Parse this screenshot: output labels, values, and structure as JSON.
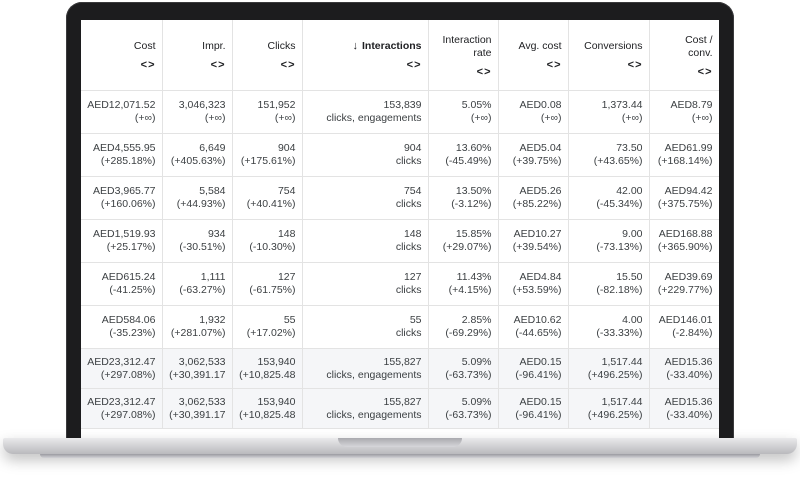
{
  "table": {
    "sort_glyph": "<>",
    "sort_arrow": "↓",
    "columns": [
      {
        "label": "Cost"
      },
      {
        "label": "Impr."
      },
      {
        "label": "Clicks"
      },
      {
        "label": "Interactions"
      },
      {
        "label_line1": "Interaction",
        "label_line2": "rate"
      },
      {
        "label": "Avg. cost"
      },
      {
        "label": "Conversions"
      },
      {
        "label_line1": "Cost /",
        "label_line2": "conv."
      }
    ],
    "rows": [
      [
        [
          "AED12,071.52",
          "(+∞)"
        ],
        [
          "3,046,323",
          "(+∞)"
        ],
        [
          "151,952",
          "(+∞)"
        ],
        [
          "153,839",
          "clicks, engagements"
        ],
        [
          "5.05%",
          "(+∞)"
        ],
        [
          "AED0.08",
          "(+∞)"
        ],
        [
          "1,373.44",
          "(+∞)"
        ],
        [
          "AED8.79",
          "(+∞)"
        ]
      ],
      [
        [
          "AED4,555.95",
          "(+285.18%)"
        ],
        [
          "6,649",
          "(+405.63%)"
        ],
        [
          "904",
          "(+175.61%)"
        ],
        [
          "904",
          "clicks"
        ],
        [
          "13.60%",
          "(-45.49%)"
        ],
        [
          "AED5.04",
          "(+39.75%)"
        ],
        [
          "73.50",
          "(+43.65%)"
        ],
        [
          "AED61.99",
          "(+168.14%)"
        ]
      ],
      [
        [
          "AED3,965.77",
          "(+160.06%)"
        ],
        [
          "5,584",
          "(+44.93%)"
        ],
        [
          "754",
          "(+40.41%)"
        ],
        [
          "754",
          "clicks"
        ],
        [
          "13.50%",
          "(-3.12%)"
        ],
        [
          "AED5.26",
          "(+85.22%)"
        ],
        [
          "42.00",
          "(-45.34%)"
        ],
        [
          "AED94.42",
          "(+375.75%)"
        ]
      ],
      [
        [
          "AED1,519.93",
          "(+25.17%)"
        ],
        [
          "934",
          "(-30.51%)"
        ],
        [
          "148",
          "(-10.30%)"
        ],
        [
          "148",
          "clicks"
        ],
        [
          "15.85%",
          "(+29.07%)"
        ],
        [
          "AED10.27",
          "(+39.54%)"
        ],
        [
          "9.00",
          "(-73.13%)"
        ],
        [
          "AED168.88",
          "(+365.90%)"
        ]
      ],
      [
        [
          "AED615.24",
          "(-41.25%)"
        ],
        [
          "1,111",
          "(-63.27%)"
        ],
        [
          "127",
          "(-61.75%)"
        ],
        [
          "127",
          "clicks"
        ],
        [
          "11.43%",
          "(+4.15%)"
        ],
        [
          "AED4.84",
          "(+53.59%)"
        ],
        [
          "15.50",
          "(-82.18%)"
        ],
        [
          "AED39.69",
          "(+229.77%)"
        ]
      ],
      [
        [
          "AED584.06",
          "(-35.23%)"
        ],
        [
          "1,932",
          "(+281.07%)"
        ],
        [
          "55",
          "(+17.02%)"
        ],
        [
          "55",
          "clicks"
        ],
        [
          "2.85%",
          "(-69.29%)"
        ],
        [
          "AED10.62",
          "(-44.65%)"
        ],
        [
          "4.00",
          "(-33.33%)"
        ],
        [
          "AED146.01",
          "(-2.84%)"
        ]
      ]
    ],
    "totals": [
      [
        [
          "AED23,312.47",
          "(+297.08%)"
        ],
        [
          "3,062,533",
          "(+30,391.17"
        ],
        [
          "153,940",
          "(+10,825.48"
        ],
        [
          "155,827",
          "clicks, engagements"
        ],
        [
          "5.09%",
          "(-63.73%)"
        ],
        [
          "AED0.15",
          "(-96.41%)"
        ],
        [
          "1,517.44",
          "(+496.25%)"
        ],
        [
          "AED15.36",
          "(-33.40%)"
        ]
      ],
      [
        [
          "AED23,312.47",
          "(+297.08%)"
        ],
        [
          "3,062,533",
          "(+30,391.17"
        ],
        [
          "153,940",
          "(+10,825.48"
        ],
        [
          "155,827",
          "clicks, engagements"
        ],
        [
          "5.09%",
          "(-63.73%)"
        ],
        [
          "AED0.15",
          "(-96.41%)"
        ],
        [
          "1,517.44",
          "(+496.25%)"
        ],
        [
          "AED15.36",
          "(-33.40%)"
        ]
      ]
    ]
  }
}
